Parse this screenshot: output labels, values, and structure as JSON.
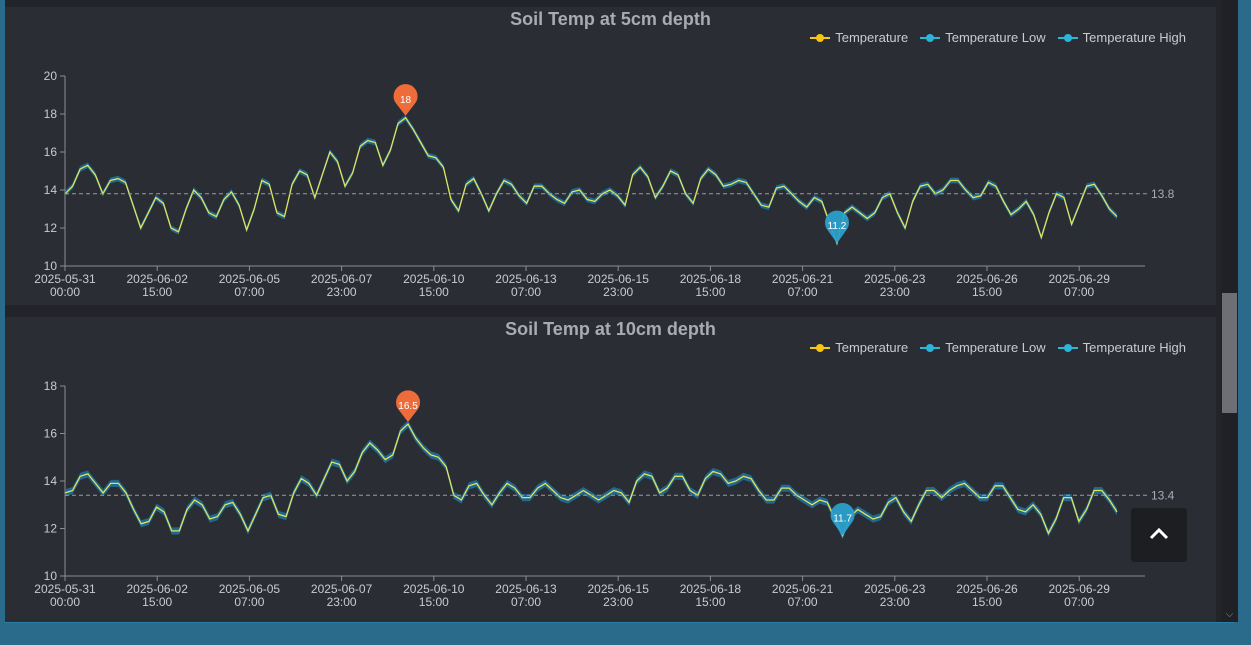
{
  "charts": [
    {
      "title": "Soil Temp at 5cm depth",
      "legend": [
        "Temperature",
        "Temperature Low",
        "Temperature High"
      ],
      "mark_max": "18",
      "mark_min": "11.2",
      "avg_label": "13.8"
    },
    {
      "title": "Soil Temp at 10cm depth",
      "legend": [
        "Temperature",
        "Temperature Low",
        "Temperature High"
      ],
      "mark_max": "16.5",
      "mark_min": "11.7",
      "avg_label": "13.4"
    }
  ],
  "x_ticks": [
    [
      "2025-05-31",
      "00:00"
    ],
    [
      "2025-06-02",
      "15:00"
    ],
    [
      "2025-06-05",
      "07:00"
    ],
    [
      "2025-06-07",
      "23:00"
    ],
    [
      "2025-06-10",
      "15:00"
    ],
    [
      "2025-06-13",
      "07:00"
    ],
    [
      "2025-06-15",
      "23:00"
    ],
    [
      "2025-06-18",
      "15:00"
    ],
    [
      "2025-06-21",
      "07:00"
    ],
    [
      "2025-06-23",
      "23:00"
    ],
    [
      "2025-06-26",
      "15:00"
    ],
    [
      "2025-06-29",
      "07:00"
    ]
  ],
  "colors": {
    "temperature": "#f7c514",
    "low": "#2bb5d8",
    "high": "#2bb5d8",
    "band": "#1f6f9a",
    "max_pin": "#ee6b3a",
    "min_pin": "#2a9fcb"
  },
  "chart_data": [
    {
      "type": "line",
      "title": "Soil Temp at 5cm depth",
      "x_start": "2025-05-31 00:00",
      "x_end": "2025-06-30 15:00",
      "ylim": [
        10,
        20
      ],
      "yticks": [
        10,
        12,
        14,
        16,
        18,
        20
      ],
      "average": 13.8,
      "max": 18,
      "min": 11.2,
      "series": [
        {
          "name": "Temperature",
          "values": [
            13.8,
            14.2,
            15.1,
            15.3,
            14.8,
            13.8,
            14.5,
            14.6,
            14.4,
            13.2,
            12.0,
            12.8,
            13.6,
            13.3,
            12.0,
            11.8,
            13.0,
            14.0,
            13.6,
            12.8,
            12.6,
            13.5,
            13.9,
            13.2,
            11.9,
            13.0,
            14.5,
            14.3,
            12.8,
            12.6,
            14.3,
            15.0,
            14.8,
            13.6,
            14.8,
            16.0,
            15.5,
            14.2,
            14.9,
            16.3,
            16.6,
            16.5,
            15.3,
            16.1,
            17.5,
            17.8,
            17.2,
            16.5,
            15.8,
            15.7,
            15.2,
            13.5,
            12.9,
            14.3,
            14.6,
            13.8,
            12.9,
            13.8,
            14.5,
            14.3,
            13.7,
            13.3,
            14.2,
            14.2,
            13.8,
            13.5,
            13.3,
            13.9,
            14.0,
            13.5,
            13.4,
            13.8,
            14.0,
            13.7,
            13.2,
            14.8,
            15.2,
            14.7,
            13.6,
            14.2,
            15.0,
            14.8,
            13.8,
            13.3,
            14.6,
            15.1,
            14.8,
            14.2,
            14.3,
            14.5,
            14.4,
            13.8,
            13.2,
            13.1,
            14.1,
            14.2,
            13.8,
            13.4,
            13.1,
            13.6,
            13.4,
            12.3,
            11.2,
            12.8,
            13.1,
            12.8,
            12.5,
            12.8,
            13.6,
            13.8,
            12.8,
            12.0,
            13.4,
            14.2,
            14.3,
            13.8,
            14.0,
            14.5,
            14.5,
            14.0,
            13.6,
            13.7,
            14.4,
            14.2,
            13.4,
            12.7,
            13.0,
            13.4,
            12.7,
            11.5,
            12.8,
            13.8,
            13.6,
            12.2,
            13.2,
            14.2,
            14.3,
            13.7,
            13.0,
            12.6
          ]
        }
      ]
    },
    {
      "type": "line",
      "title": "Soil Temp at 10cm depth",
      "x_start": "2025-05-31 00:00",
      "x_end": "2025-06-30 15:00",
      "ylim": [
        10,
        18
      ],
      "yticks": [
        10,
        12,
        14,
        16,
        18
      ],
      "average": 13.4,
      "max": 16.5,
      "min": 11.7,
      "series": [
        {
          "name": "Temperature",
          "values": [
            13.5,
            13.6,
            14.2,
            14.3,
            13.9,
            13.5,
            13.9,
            13.9,
            13.5,
            12.8,
            12.2,
            12.3,
            12.9,
            12.7,
            11.9,
            11.9,
            12.8,
            13.2,
            13.0,
            12.4,
            12.5,
            13.0,
            13.1,
            12.6,
            11.9,
            12.6,
            13.3,
            13.4,
            12.6,
            12.5,
            13.5,
            14.1,
            13.9,
            13.4,
            14.1,
            14.8,
            14.7,
            14.0,
            14.4,
            15.2,
            15.6,
            15.3,
            14.9,
            15.1,
            16.1,
            16.4,
            15.8,
            15.4,
            15.1,
            15.0,
            14.6,
            13.4,
            13.2,
            13.8,
            13.9,
            13.4,
            13.0,
            13.5,
            13.9,
            13.7,
            13.3,
            13.3,
            13.7,
            13.9,
            13.6,
            13.3,
            13.2,
            13.4,
            13.6,
            13.4,
            13.2,
            13.4,
            13.6,
            13.5,
            13.1,
            14.0,
            14.3,
            14.2,
            13.5,
            13.7,
            14.2,
            14.2,
            13.6,
            13.4,
            14.1,
            14.4,
            14.3,
            13.9,
            14.0,
            14.2,
            14.1,
            13.6,
            13.2,
            13.2,
            13.7,
            13.7,
            13.4,
            13.2,
            13.0,
            13.2,
            13.1,
            12.4,
            11.7,
            12.5,
            12.8,
            12.6,
            12.4,
            12.5,
            13.1,
            13.3,
            12.7,
            12.3,
            13.0,
            13.6,
            13.6,
            13.3,
            13.6,
            13.8,
            13.9,
            13.6,
            13.3,
            13.3,
            13.8,
            13.8,
            13.3,
            12.8,
            12.7,
            13.0,
            12.6,
            11.8,
            12.4,
            13.3,
            13.3,
            12.3,
            12.8,
            13.6,
            13.6,
            13.2,
            12.7
          ]
        }
      ]
    }
  ]
}
